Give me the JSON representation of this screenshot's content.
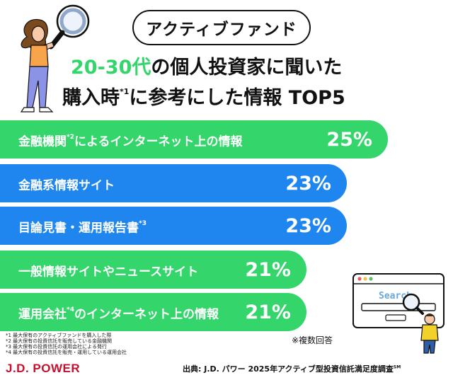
{
  "badge": "アクティブファンド",
  "title": {
    "line1_green": "20-30代",
    "line1_rest": "の個人投資家に聞いた",
    "line2_a": "購入時",
    "line2_sup": "*1",
    "line2_b": "に参考にした情報 TOP5"
  },
  "chart_data": {
    "type": "bar",
    "orientation": "horizontal",
    "categories": [
      "金融機関*2によるインターネット上の情報",
      "金融系情報サイト",
      "目論見書・運用報告書*3",
      "一般情報サイトやニュースサイト",
      "運用会社*4のインターネット上の情報"
    ],
    "values": [
      25,
      23,
      23,
      21,
      21
    ],
    "labels": [
      "25%",
      "23%",
      "23%",
      "21%",
      "21%"
    ],
    "colors": [
      "#34d66c",
      "#1f86f0",
      "#1f86f0",
      "#34d66c",
      "#34d66c"
    ]
  },
  "bars": [
    {
      "label_a": "金融機関",
      "sup": "*2",
      "label_b": "によるインターネット上の情報",
      "value": "25%"
    },
    {
      "label_a": "金融系情報サイト",
      "sup": "",
      "label_b": "",
      "value": "23%"
    },
    {
      "label_a": "目論見書・運用報告書",
      "sup": "*3",
      "label_b": "",
      "value": "23%"
    },
    {
      "label_a": "一般情報サイトやニュースサイト",
      "sup": "",
      "label_b": "",
      "value": "21%"
    },
    {
      "label_a": "運用会社",
      "sup": "*4",
      "label_b": "のインターネット上の情報",
      "value": "21%"
    }
  ],
  "multiple_answers": "※複数回答",
  "notes": [
    "*1 最大保有のアクティブファンドを購入した際",
    "*2 最大保有の投資信託を販売している金融機関",
    "*3 最大保有の投資信託の運用会社による発行",
    "*4 最大保有の投資信託を販売・運用している運用会社"
  ],
  "brand": "J.D. POWER",
  "source": "出典: J.D. パワー 2025年アクティブ型投資信託満足度調査",
  "source_sup": "SM",
  "illustration": {
    "search_text": "Search"
  },
  "icons": [
    "magnifier-icon",
    "search-window-icon"
  ]
}
